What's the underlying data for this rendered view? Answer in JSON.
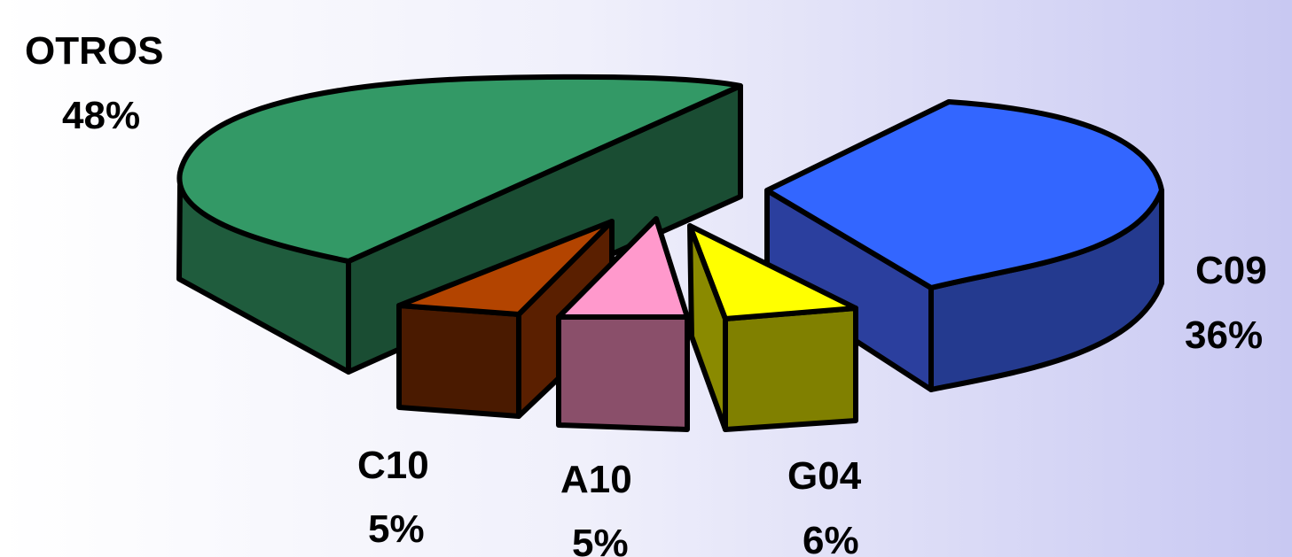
{
  "chart_data": {
    "type": "pie",
    "style": "3d-exploded",
    "slices": [
      {
        "label": "OTROS",
        "value": 48,
        "value_label": "48%",
        "top_color": "#339966",
        "side_color": "#1f5c3d",
        "front_color": "#1a4d33"
      },
      {
        "label": "C09",
        "value": 36,
        "value_label": "36%",
        "top_color": "#3366ff",
        "side_color": "#2b3f9e",
        "front_color": "#243a8f"
      },
      {
        "label": "C10",
        "value": 5,
        "value_label": "5%",
        "top_color": "#b34400",
        "side_color": "#5a1f00",
        "front_color": "#4a1a00"
      },
      {
        "label": "A10",
        "value": 5,
        "value_label": "5%",
        "top_color": "#ff99cc",
        "side_color": "#8a4f6a",
        "front_color": "#8a4f6a"
      },
      {
        "label": "G04",
        "value": 6,
        "value_label": "6%",
        "top_color": "#ffff00",
        "side_color": "#8a8a00",
        "front_color": "#808000"
      }
    ]
  }
}
